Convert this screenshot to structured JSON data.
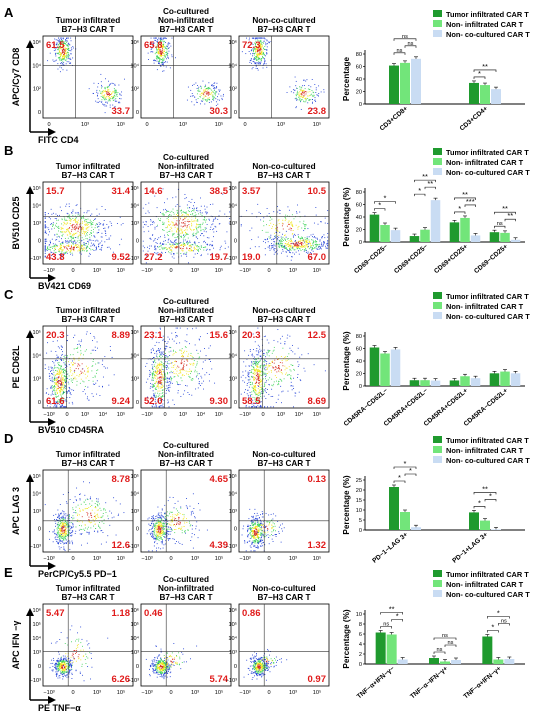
{
  "legend_labels": [
    "Tumor infiltrated CAR T",
    "Non- infiltrated CAR T",
    "Non- co-cultured CAR T"
  ],
  "colors": {
    "tumor": "#1f9a2e",
    "non_infiltrated": "#72e57a",
    "non_cocultured": "#c9dcf3",
    "quad_number": "#e01b1b",
    "dots": "#1f3fd6",
    "density_hot": "#d42a1e"
  },
  "panel_letters": [
    "A",
    "B",
    "C",
    "D",
    "E"
  ],
  "significance_mark": "*",
  "chart_data": [
    {
      "id": "A",
      "type": "scatter",
      "xlabel": "FITC CD4",
      "ylabel": "APC/Cy7 CD8",
      "x_ticks": [
        "0",
        "10³",
        "10⁵"
      ],
      "y_ticks": [
        "10⁶",
        "10⁴",
        "10²",
        "0"
      ],
      "groups": [
        {
          "title": [
            "Tumor infiltrated",
            "B7−H3 CAR T"
          ],
          "quadrants": {
            "top_left": "61.5",
            "bottom_right": "33.7"
          }
        },
        {
          "title": [
            "Co-cultured",
            "Non-infiltrated",
            "B7−H3 CAR T"
          ],
          "quadrants": {
            "top_left": "65.8",
            "bottom_right": "30.3"
          }
        },
        {
          "title": [
            "Non-co-cultured",
            "B7−H3 CAR T"
          ],
          "quadrants": {
            "top_left": "72.3",
            "bottom_right": "23.8"
          }
        }
      ],
      "bar": {
        "type": "bar",
        "ylabel": "Percentage",
        "y_ticks": [
          "0",
          "20",
          "40",
          "60",
          "80"
        ],
        "ylim": [
          0,
          80
        ],
        "categories": [
          "CD3+CD8+",
          "CD3+CD4+"
        ],
        "series": [
          {
            "name": "Tumor infiltrated CAR T",
            "values": [
              61.5,
              33.7
            ]
          },
          {
            "name": "Non- infiltrated CAR T",
            "values": [
              65.8,
              30.3
            ]
          },
          {
            "name": "Non- co-cultured CAR T",
            "values": [
              72.3,
              23.8
            ]
          }
        ],
        "sig": [
          {
            "cat": 0,
            "a": 0,
            "b": 1,
            "text": "ns"
          },
          {
            "cat": 0,
            "a": 1,
            "b": 2,
            "text": "ns"
          },
          {
            "cat": 0,
            "a": 0,
            "b": 2,
            "text": "ns"
          },
          {
            "cat": 1,
            "a": 0,
            "b": 1,
            "text": "*"
          },
          {
            "cat": 1,
            "a": 0,
            "b": 2,
            "text": "**"
          }
        ]
      }
    },
    {
      "id": "B",
      "type": "scatter",
      "xlabel": "BV421 CD69",
      "ylabel": "BV510 CD25",
      "x_ticks": [
        "−10³",
        "0",
        "10³",
        "10⁵"
      ],
      "y_ticks": [
        "10⁵",
        "10⁴",
        "10³",
        "0",
        "−10³"
      ],
      "groups": [
        {
          "title": [
            "Tumor infiltrated",
            "B7−H3 CAR T"
          ],
          "quadrants": {
            "top_left": "15.7",
            "top_right": "31.4",
            "bottom_left": "43.8",
            "bottom_right": "9.52"
          }
        },
        {
          "title": [
            "Co-cultured",
            "Non-infiltrated",
            "B7−H3 CAR T"
          ],
          "quadrants": {
            "top_left": "14.6",
            "top_right": "38.5",
            "bottom_left": "27.2",
            "bottom_right": "19.7"
          }
        },
        {
          "title": [
            "Non-co-cultured",
            "B7−H3 CAR T"
          ],
          "quadrants": {
            "top_left": "3.57",
            "top_right": "10.5",
            "bottom_left": "19.0",
            "bottom_right": "67.0"
          }
        }
      ],
      "bar": {
        "type": "bar",
        "ylabel": "Percentage (%)",
        "y_ticks": [
          "0",
          "20",
          "40",
          "60",
          "80"
        ],
        "ylim": [
          0,
          80
        ],
        "categories": [
          "CD69−CD25−",
          "CD69+CD25−",
          "CD69+CD25+",
          "CD69−CD25+"
        ],
        "series": [
          {
            "name": "Tumor infiltrated CAR T",
            "values": [
              43.8,
              9.52,
              31.4,
              15.7
            ]
          },
          {
            "name": "Non- infiltrated CAR T",
            "values": [
              27.2,
              19.7,
              38.5,
              14.6
            ]
          },
          {
            "name": "Non- co-cultured CAR T",
            "values": [
              19.0,
              67.0,
              10.5,
              3.57
            ]
          }
        ],
        "sig": [
          {
            "cat": 0,
            "a": 0,
            "b": 1,
            "text": "*"
          },
          {
            "cat": 0,
            "a": 0,
            "b": 2,
            "text": "*"
          },
          {
            "cat": 1,
            "a": 0,
            "b": 1,
            "text": "*"
          },
          {
            "cat": 1,
            "a": 1,
            "b": 2,
            "text": "**"
          },
          {
            "cat": 1,
            "a": 0,
            "b": 2,
            "text": "**"
          },
          {
            "cat": 2,
            "a": 0,
            "b": 1,
            "text": "*"
          },
          {
            "cat": 2,
            "a": 1,
            "b": 2,
            "text": "***"
          },
          {
            "cat": 2,
            "a": 0,
            "b": 2,
            "text": "**"
          },
          {
            "cat": 3,
            "a": 0,
            "b": 1,
            "text": "ns"
          },
          {
            "cat": 3,
            "a": 1,
            "b": 2,
            "text": "**"
          },
          {
            "cat": 3,
            "a": 0,
            "b": 2,
            "text": "**"
          }
        ]
      }
    },
    {
      "id": "C",
      "type": "scatter",
      "xlabel": "BV510 CD45RA",
      "ylabel": "PE CD62L",
      "x_ticks": [
        "−10³",
        "0",
        "10³",
        "10⁴",
        "10⁵"
      ],
      "y_ticks": [
        "10⁵",
        "10⁴",
        "10³",
        "0"
      ],
      "groups": [
        {
          "title": [
            "Tumor infiltrated",
            "B7−H3 CAR T"
          ],
          "quadrants": {
            "top_left": "20.3",
            "top_right": "8.89",
            "bottom_left": "61.6",
            "bottom_right": "9.24"
          }
        },
        {
          "title": [
            "Co-cultured",
            "Non-infiltrated",
            "B7−H3 CAR T"
          ],
          "quadrants": {
            "top_left": "23.1",
            "top_right": "15.6",
            "bottom_left": "52.0",
            "bottom_right": "9.30"
          }
        },
        {
          "title": [
            "Non-co-cultured",
            "B7−H3 CAR T"
          ],
          "quadrants": {
            "top_left": "20.3",
            "top_right": "12.5",
            "bottom_left": "58.5",
            "bottom_right": "8.69"
          }
        }
      ],
      "bar": {
        "type": "bar",
        "ylabel": "Percentage (%)",
        "y_ticks": [
          "0",
          "20",
          "40",
          "60",
          "80"
        ],
        "ylim": [
          0,
          80
        ],
        "categories": [
          "CD45RA−CD62L−",
          "CD45RA+CD62L−",
          "CD45RA+CD62L+",
          "CD45RA−CD62L+"
        ],
        "series": [
          {
            "name": "Tumor infiltrated CAR T",
            "values": [
              61.6,
              9.24,
              8.89,
              20.3
            ]
          },
          {
            "name": "Non- infiltrated CAR T",
            "values": [
              52.0,
              9.3,
              15.6,
              23.1
            ]
          },
          {
            "name": "Non- co-cultured CAR T",
            "values": [
              58.5,
              8.69,
              12.5,
              20.3
            ]
          }
        ],
        "sig": []
      }
    },
    {
      "id": "D",
      "type": "scatter",
      "xlabel": "PerCP/Cy5.5 PD−1",
      "ylabel": "APC LAG 3",
      "x_ticks": [
        "−10³",
        "0",
        "10³",
        "10⁵"
      ],
      "y_ticks": [
        "10⁵",
        "10⁴",
        "10³",
        "0",
        "−10³"
      ],
      "groups": [
        {
          "title": [
            "Tumor infiltrated",
            "B7−H3 CAR T"
          ],
          "quadrants": {
            "top_right": "8.78",
            "bottom_right": "12.6"
          }
        },
        {
          "title": [
            "Co-cultured",
            "Non-infiltrated",
            "B7−H3 CAR T"
          ],
          "quadrants": {
            "top_right": "4.65",
            "bottom_right": "4.39"
          }
        },
        {
          "title": [
            "Non-co-cultured",
            "B7−H3 CAR T"
          ],
          "quadrants": {
            "top_right": "0.13",
            "bottom_right": "1.32"
          }
        }
      ],
      "bar": {
        "type": "bar",
        "ylabel": "Percentage (%)",
        "y_ticks": [
          "0",
          "5",
          "10",
          "15",
          "20",
          "25"
        ],
        "ylim": [
          0,
          25
        ],
        "categories": [
          "PD−1−LAG 3+",
          "PD−1+LAG 3+"
        ],
        "series": [
          {
            "name": "Tumor infiltrated CAR T",
            "values": [
              21.5,
              8.8
            ]
          },
          {
            "name": "Non- infiltrated CAR T",
            "values": [
              9.0,
              4.7
            ]
          },
          {
            "name": "Non- co-cultured CAR T",
            "values": [
              1.4,
              0.3
            ]
          }
        ],
        "sig": [
          {
            "cat": 0,
            "a": 0,
            "b": 1,
            "text": "*"
          },
          {
            "cat": 0,
            "a": 1,
            "b": 2,
            "text": "*"
          },
          {
            "cat": 0,
            "a": 0,
            "b": 2,
            "text": "*"
          },
          {
            "cat": 1,
            "a": 0,
            "b": 1,
            "text": "*"
          },
          {
            "cat": 1,
            "a": 1,
            "b": 2,
            "text": "*"
          },
          {
            "cat": 1,
            "a": 0,
            "b": 2,
            "text": "**"
          }
        ]
      }
    },
    {
      "id": "E",
      "type": "scatter",
      "xlabel": "PE TNF−α",
      "ylabel": "APC IFN −γ",
      "x_ticks": [
        "−10³",
        "0",
        "10³",
        "10⁵"
      ],
      "y_ticks": [
        "10⁶",
        "10⁵",
        "10⁴",
        "10³",
        "0",
        "−10³"
      ],
      "groups": [
        {
          "title": [
            "Tumor infiltrated",
            "B7−H3 CAR T"
          ],
          "quadrants": {
            "top_left": "5.47",
            "top_right": "1.18",
            "bottom_right": "6.26"
          }
        },
        {
          "title": [
            "Co-cultured",
            "Non-infiltrated",
            "B7−H3 CAR T"
          ],
          "quadrants": {
            "top_left": "0.46",
            "bottom_right": "5.74"
          }
        },
        {
          "title": [
            "Non-co-cultured",
            "B7−H3 CAR T"
          ],
          "quadrants": {
            "top_left": "0.86",
            "bottom_right": "0.97"
          }
        }
      ],
      "bar": {
        "type": "bar",
        "ylabel": "Percentage (%)",
        "y_ticks": [
          "0",
          "2",
          "4",
          "6",
          "8",
          "10"
        ],
        "ylim": [
          0,
          10
        ],
        "categories": [
          "TNF−α+IFN−γ−",
          "TNF−α−IFN−γ+",
          "TNF−α+IFN−γ+"
        ],
        "series": [
          {
            "name": "Tumor infiltrated CAR T",
            "values": [
              6.3,
              1.2,
              5.5
            ]
          },
          {
            "name": "Non- infiltrated CAR T",
            "values": [
              5.9,
              0.5,
              0.9
            ]
          },
          {
            "name": "Non- co-cultured CAR T",
            "values": [
              0.9,
              0.8,
              1.0
            ]
          }
        ],
        "sig": [
          {
            "cat": 0,
            "a": 0,
            "b": 1,
            "text": "ns"
          },
          {
            "cat": 0,
            "a": 1,
            "b": 2,
            "text": "*"
          },
          {
            "cat": 0,
            "a": 0,
            "b": 2,
            "text": "**"
          },
          {
            "cat": 1,
            "a": 0,
            "b": 1,
            "text": "ns"
          },
          {
            "cat": 1,
            "a": 1,
            "b": 2,
            "text": "ns"
          },
          {
            "cat": 1,
            "a": 0,
            "b": 2,
            "text": "ns"
          },
          {
            "cat": 2,
            "a": 0,
            "b": 1,
            "text": "*"
          },
          {
            "cat": 2,
            "a": 1,
            "b": 2,
            "text": "ns"
          },
          {
            "cat": 2,
            "a": 0,
            "b": 2,
            "text": "*"
          }
        ]
      }
    }
  ]
}
